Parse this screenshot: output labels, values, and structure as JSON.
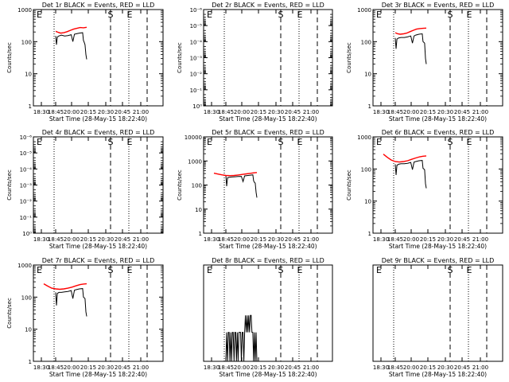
{
  "page": {
    "width": 640,
    "height": 480
  },
  "colors": {
    "events": "#000000",
    "lld": "#ff0000",
    "axis": "#000000"
  },
  "chart_data": [
    {
      "type": "line",
      "title": "Det 1r BLACK = Events, RED = LLD",
      "xlabel": "Start Time (28-May-15 18:22:40)",
      "ylabel": "Counts/sec",
      "ylog": true,
      "ylim": [
        1,
        1000
      ],
      "xlim": [
        "18:22",
        "21:05"
      ],
      "x_ticks": [
        "18:30",
        "18:45",
        "20:00",
        "20:15",
        "20:30",
        "20:45",
        "21:00"
      ],
      "y_ticks": [
        {
          "value": 1,
          "label": "1"
        },
        {
          "value": 10,
          "label": "10"
        },
        {
          "value": 100,
          "label": "100"
        },
        {
          "value": 1000,
          "label": "1000"
        }
      ],
      "markers": [
        {
          "label": "E",
          "time": "18:22"
        },
        {
          "label": "S",
          "time": "20:28"
        },
        {
          "label": "E",
          "time": "20:43"
        }
      ],
      "dotted_lines": [
        "18:41",
        "20:42"
      ],
      "dashed_lines": [
        "20:28",
        "20:57"
      ],
      "series": [
        {
          "name": "BLACK = Events",
          "color": "#000000",
          "x": [
            "18:37",
            "18:38",
            "18:39",
            "18:41",
            "18:44",
            "18:48",
            "18:52",
            "18:56",
            "18:58",
            "19:00",
            "19:02",
            "19:06",
            "19:10",
            "19:11",
            "19:12",
            "19:13",
            "19:14",
            "19:15"
          ],
          "y": [
            150,
            80,
            140,
            150,
            160,
            150,
            155,
            165,
            100,
            170,
            175,
            185,
            190,
            110,
            95,
            80,
            40,
            28
          ]
        },
        {
          "name": "RED = LLD",
          "color": "#ff0000",
          "x": [
            "18:37",
            "18:40",
            "18:43",
            "18:47",
            "18:51",
            "18:55",
            "18:59",
            "19:03",
            "19:07",
            "19:11",
            "19:15"
          ],
          "y": [
            210,
            195,
            185,
            190,
            205,
            225,
            245,
            260,
            275,
            270,
            280
          ]
        }
      ]
    },
    {
      "type": "line",
      "title": "Det 2r BLACK = Events, RED = LLD",
      "xlabel": "Start Time (28-May-15 18:22:40)",
      "ylabel": "Counts/sec",
      "ylog": true,
      "ylim": [
        1,
        1e-06
      ],
      "xlim": [
        "18:22",
        "21:05"
      ],
      "x_ticks": [
        "18:30",
        "18:45",
        "20:00",
        "20:15",
        "20:30",
        "20:45",
        "21:00"
      ],
      "y_ticks": [
        {
          "value": 1e-06,
          "label": "10⁻⁶"
        },
        {
          "value": 1e-05,
          "label": "10⁻⁵"
        },
        {
          "value": 0.0001,
          "label": "10⁻⁴"
        },
        {
          "value": 0.001,
          "label": "10⁻³"
        },
        {
          "value": 0.01,
          "label": "10⁻²"
        },
        {
          "value": 0.1,
          "label": "10⁻¹"
        },
        {
          "value": 1,
          "label": "10⁰"
        }
      ],
      "markers": [
        {
          "label": "E",
          "time": "18:22"
        },
        {
          "label": "S",
          "time": "20:28"
        },
        {
          "label": "E",
          "time": "20:43"
        }
      ],
      "dotted_lines": [
        "18:41",
        "20:42"
      ],
      "dashed_lines": [
        "20:28",
        "20:57"
      ],
      "series": []
    },
    {
      "type": "line",
      "title": "Det 3r BLACK = Events, RED = LLD",
      "xlabel": "Start Time (28-May-15 18:22:40)",
      "ylabel": "Counts/sec",
      "ylog": true,
      "ylim": [
        1,
        1000
      ],
      "xlim": [
        "18:22",
        "21:05"
      ],
      "x_ticks": [
        "18:30",
        "18:45",
        "20:00",
        "20:15",
        "20:30",
        "20:45",
        "21:00"
      ],
      "y_ticks": [
        {
          "value": 1,
          "label": "1"
        },
        {
          "value": 10,
          "label": "10"
        },
        {
          "value": 100,
          "label": "100"
        },
        {
          "value": 1000,
          "label": "1000"
        }
      ],
      "markers": [
        {
          "label": "E",
          "time": "18:22"
        },
        {
          "label": "S",
          "time": "20:28"
        },
        {
          "label": "E",
          "time": "20:43"
        }
      ],
      "dotted_lines": [
        "18:41",
        "20:42"
      ],
      "dashed_lines": [
        "20:28",
        "20:57"
      ],
      "series": [
        {
          "name": "BLACK = Events",
          "color": "#000000",
          "x": [
            "18:37",
            "18:38",
            "18:39",
            "18:41",
            "18:44",
            "18:48",
            "18:52",
            "18:56",
            "18:58",
            "19:00",
            "19:02",
            "19:06",
            "19:10",
            "19:11",
            "19:12",
            "19:13",
            "19:14",
            "19:15"
          ],
          "y": [
            130,
            60,
            120,
            130,
            135,
            135,
            140,
            150,
            90,
            150,
            160,
            170,
            175,
            100,
            95,
            90,
            30,
            20
          ]
        },
        {
          "name": "RED = LLD",
          "color": "#ff0000",
          "x": [
            "18:37",
            "18:40",
            "18:43",
            "18:47",
            "18:51",
            "18:55",
            "18:59",
            "19:03",
            "19:07",
            "19:11",
            "19:15"
          ],
          "y": [
            190,
            175,
            170,
            175,
            185,
            205,
            225,
            245,
            255,
            260,
            265
          ]
        }
      ]
    },
    {
      "type": "line",
      "title": "Det 4r BLACK = Events, RED = LLD",
      "xlabel": "Start Time (28-May-15 18:22:40)",
      "ylabel": "Counts/sec",
      "ylog": true,
      "ylim": [
        1,
        1e-06
      ],
      "xlim": [
        "18:22",
        "21:05"
      ],
      "x_ticks": [
        "18:30",
        "18:45",
        "20:00",
        "20:15",
        "20:30",
        "20:45",
        "21:00"
      ],
      "y_ticks": [
        {
          "value": 1e-06,
          "label": "10⁻⁶"
        },
        {
          "value": 1e-05,
          "label": "10⁻⁵"
        },
        {
          "value": 0.0001,
          "label": "10⁻⁴"
        },
        {
          "value": 0.001,
          "label": "10⁻³"
        },
        {
          "value": 0.01,
          "label": "10⁻²"
        },
        {
          "value": 0.1,
          "label": "10⁻¹"
        },
        {
          "value": 1,
          "label": "10⁰"
        }
      ],
      "markers": [
        {
          "label": "E",
          "time": "18:22"
        },
        {
          "label": "S",
          "time": "20:28"
        },
        {
          "label": "E",
          "time": "20:43"
        }
      ],
      "dotted_lines": [
        "18:41",
        "20:42"
      ],
      "dashed_lines": [
        "20:28",
        "20:57"
      ],
      "series": []
    },
    {
      "type": "line",
      "title": "Det 5r BLACK = Events, RED = LLD",
      "xlabel": "Start Time (28-May-15 18:22:40)",
      "ylabel": "Counts/sec",
      "ylog": true,
      "ylim": [
        1,
        10000
      ],
      "xlim": [
        "18:22",
        "21:05"
      ],
      "x_ticks": [
        "18:30",
        "18:45",
        "20:00",
        "20:15",
        "20:30",
        "20:45",
        "21:00"
      ],
      "y_ticks": [
        {
          "value": 1,
          "label": "1"
        },
        {
          "value": 10,
          "label": "10"
        },
        {
          "value": 100,
          "label": "100"
        },
        {
          "value": 1000,
          "label": "1000"
        },
        {
          "value": 10000,
          "label": "10000"
        }
      ],
      "markers": [
        {
          "label": "E",
          "time": "18:22"
        },
        {
          "label": "S",
          "time": "20:28"
        },
        {
          "label": "E",
          "time": "20:43"
        }
      ],
      "dotted_lines": [
        "18:41",
        "20:42"
      ],
      "dashed_lines": [
        "20:28",
        "20:57"
      ],
      "series": [
        {
          "name": "BLACK = Events",
          "color": "#000000",
          "x": [
            "18:37",
            "18:38",
            "18:39",
            "18:41",
            "18:44",
            "18:48",
            "18:52",
            "18:56",
            "18:58",
            "19:00",
            "19:02",
            "19:06",
            "19:10",
            "19:11",
            "19:12",
            "19:13",
            "19:14",
            "19:15"
          ],
          "y": [
            240,
            90,
            200,
            210,
            215,
            220,
            225,
            230,
            140,
            240,
            245,
            255,
            265,
            150,
            130,
            120,
            50,
            30
          ]
        },
        {
          "name": "RED = LLD",
          "color": "#ff0000",
          "x": [
            "18:22",
            "18:27",
            "18:32",
            "18:37",
            "18:42",
            "18:47",
            "18:52",
            "18:57",
            "19:02",
            "19:07",
            "19:11",
            "19:15"
          ],
          "y": [
            310,
            285,
            265,
            250,
            245,
            250,
            260,
            275,
            290,
            305,
            320,
            330
          ]
        }
      ]
    },
    {
      "type": "line",
      "title": "Det 6r BLACK = Events, RED = LLD",
      "xlabel": "Start Time (28-May-15 18:22:40)",
      "ylabel": "Counts/sec",
      "ylog": true,
      "ylim": [
        1,
        1000
      ],
      "xlim": [
        "18:22",
        "21:05"
      ],
      "x_ticks": [
        "18:30",
        "18:45",
        "20:00",
        "20:15",
        "20:30",
        "20:45",
        "21:00"
      ],
      "y_ticks": [
        {
          "value": 1,
          "label": "1"
        },
        {
          "value": 10,
          "label": "10"
        },
        {
          "value": 100,
          "label": "100"
        },
        {
          "value": 1000,
          "label": "1000"
        }
      ],
      "markers": [
        {
          "label": "E",
          "time": "18:22"
        },
        {
          "label": "S",
          "time": "20:28"
        },
        {
          "label": "E",
          "time": "20:43"
        }
      ],
      "dotted_lines": [
        "18:41",
        "20:42"
      ],
      "dashed_lines": [
        "20:28",
        "20:57"
      ],
      "series": [
        {
          "name": "BLACK = Events",
          "color": "#000000",
          "x": [
            "18:37",
            "18:38",
            "18:39",
            "18:41",
            "18:44",
            "18:48",
            "18:52",
            "18:56",
            "18:58",
            "19:00",
            "19:02",
            "19:06",
            "19:10",
            "19:11",
            "19:12",
            "19:13",
            "19:14",
            "19:15"
          ],
          "y": [
            140,
            65,
            130,
            140,
            145,
            145,
            150,
            160,
            95,
            165,
            170,
            180,
            185,
            105,
            100,
            95,
            35,
            25
          ]
        },
        {
          "name": "RED = LLD",
          "color": "#ff0000",
          "x": [
            "18:22",
            "18:27",
            "18:32",
            "18:37",
            "18:42",
            "18:47",
            "18:52",
            "18:57",
            "19:02",
            "19:07",
            "19:11",
            "19:15"
          ],
          "y": [
            290,
            230,
            190,
            170,
            165,
            170,
            180,
            200,
            220,
            240,
            250,
            255
          ]
        }
      ]
    },
    {
      "type": "line",
      "title": "Det 7r BLACK = Events, RED = LLD",
      "xlabel": "Start Time (28-May-15 18:22:40)",
      "ylabel": "Counts/sec",
      "ylog": true,
      "ylim": [
        1,
        1000
      ],
      "xlim": [
        "18:22",
        "21:05"
      ],
      "x_ticks": [
        "18:30",
        "18:45",
        "20:00",
        "20:15",
        "20:30",
        "20:45",
        "21:00"
      ],
      "y_ticks": [
        {
          "value": 1,
          "label": "1"
        },
        {
          "value": 10,
          "label": "10"
        },
        {
          "value": 100,
          "label": "100"
        },
        {
          "value": 1000,
          "label": "1000"
        }
      ],
      "markers": [
        {
          "label": "E",
          "time": "18:22"
        },
        {
          "label": "S",
          "time": "20:28"
        },
        {
          "label": "E",
          "time": "20:43"
        }
      ],
      "dotted_lines": [
        "18:41",
        "20:42"
      ],
      "dashed_lines": [
        "20:28",
        "20:57"
      ],
      "series": [
        {
          "name": "BLACK = Events",
          "color": "#000000",
          "x": [
            "18:37",
            "18:38",
            "18:39",
            "18:41",
            "18:44",
            "18:48",
            "18:52",
            "18:56",
            "18:58",
            "19:00",
            "19:02",
            "19:06",
            "19:10",
            "19:11",
            "19:12",
            "19:13",
            "19:14",
            "19:15"
          ],
          "y": [
            140,
            55,
            130,
            140,
            140,
            145,
            150,
            160,
            90,
            165,
            170,
            180,
            185,
            100,
            95,
            90,
            35,
            25
          ]
        },
        {
          "name": "RED = LLD",
          "color": "#ff0000",
          "x": [
            "18:22",
            "18:27",
            "18:32",
            "18:37",
            "18:42",
            "18:47",
            "18:52",
            "18:57",
            "19:02",
            "19:07",
            "19:11",
            "19:15"
          ],
          "y": [
            260,
            220,
            190,
            180,
            175,
            180,
            190,
            205,
            225,
            245,
            255,
            260
          ]
        }
      ]
    },
    {
      "type": "line",
      "title": "Det 8r BLACK = Events, RED = LLD",
      "xlabel": "Start Time (28-May-15 18:22:40)",
      "ylabel": "",
      "ylog": true,
      "ylim": [
        1,
        10
      ],
      "xlim": [
        "18:22",
        "21:05"
      ],
      "x_ticks": [
        "18:30",
        "18:45",
        "20:00",
        "20:15",
        "20:30",
        "20:45",
        "21:00"
      ],
      "y_ticks": [],
      "markers": [
        {
          "label": "E",
          "time": "18:22"
        },
        {
          "label": "S",
          "time": "20:28"
        },
        {
          "label": "E",
          "time": "20:43"
        }
      ],
      "dotted_lines": [
        "18:41",
        "20:42"
      ],
      "dashed_lines": [
        "20:28",
        "20:57"
      ],
      "series": [
        {
          "name": "BLACK = Events",
          "color": "#000000",
          "x": [
            "18:37",
            "18:38",
            "18:39",
            "18:40",
            "18:41",
            "18:42",
            "18:43",
            "18:44",
            "18:45",
            "18:46",
            "18:47",
            "18:48",
            "18:49",
            "18:50",
            "18:51",
            "18:52",
            "18:53",
            "18:54",
            "18:55",
            "18:56",
            "18:57",
            "18:58",
            "18:59",
            "19:00",
            "19:01",
            "19:02",
            "19:03",
            "19:04",
            "19:05",
            "19:06",
            "19:07",
            "19:08",
            "19:09",
            "19:10",
            "19:11",
            "19:12",
            "19:13",
            "19:14",
            "19:15"
          ],
          "y": [
            1,
            2,
            1,
            2,
            2,
            1,
            2,
            1,
            2,
            2,
            1,
            2,
            2,
            1,
            2,
            1,
            2,
            2,
            2,
            1,
            2,
            2,
            1,
            2,
            3,
            2,
            3,
            2,
            3,
            2,
            3,
            3,
            2,
            2,
            1,
            2,
            1,
            2,
            1
          ]
        }
      ]
    },
    {
      "type": "line",
      "title": "Det 9r BLACK = Events, RED = LLD",
      "xlabel": "Start Time (28-May-15 18:22:40)",
      "ylabel": "",
      "ylog": true,
      "ylim": [
        1,
        10
      ],
      "xlim": [
        "18:22",
        "21:05"
      ],
      "x_ticks": [
        "18:30",
        "18:45",
        "20:00",
        "20:15",
        "20:30",
        "20:45",
        "21:00"
      ],
      "y_ticks": [],
      "markers": [
        {
          "label": "E",
          "time": "18:22"
        },
        {
          "label": "S",
          "time": "20:28"
        },
        {
          "label": "E",
          "time": "20:43"
        }
      ],
      "dotted_lines": [
        "18:41",
        "20:42"
      ],
      "dashed_lines": [
        "20:28",
        "20:57"
      ],
      "series": []
    }
  ]
}
